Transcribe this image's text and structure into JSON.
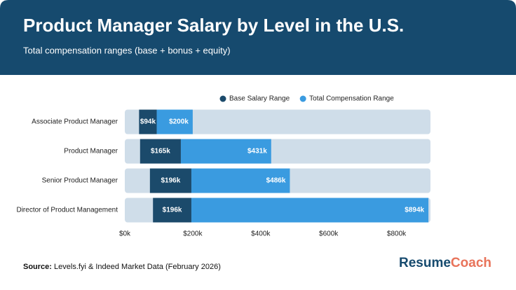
{
  "chart_data": {
    "type": "range-bar",
    "title": "Product Manager Salary by Level in the U.S.",
    "subtitle": "Total compensation ranges (base + bonus + equity)",
    "categories": [
      "Associate Product Manager",
      "Product Manager",
      "Senior Product Manager",
      "Director of Product Management"
    ],
    "series": [
      {
        "name": "Base Salary Range",
        "color": "#1b4a6b",
        "low": [
          42,
          45,
          74,
          83
        ],
        "values": [
          94,
          165,
          196,
          196
        ],
        "value_labels": [
          "$94k",
          "$165k",
          "$196k",
          "$196k"
        ]
      },
      {
        "name": "Total Compensation Range",
        "color": "#3a9be0",
        "values": [
          200,
          431,
          486,
          894
        ],
        "value_labels": [
          "$200k",
          "$431k",
          "$486k",
          "$894k"
        ]
      }
    ],
    "track_color": "#cfdde9",
    "xlim": [
      0,
      900
    ],
    "xticks": [
      {
        "value": 0,
        "label": "$0k"
      },
      {
        "value": 200,
        "label": "$200k"
      },
      {
        "value": 400,
        "label": "$400k"
      },
      {
        "value": 600,
        "label": "$600k"
      },
      {
        "value": 800,
        "label": "$800k"
      }
    ],
    "legend": "top"
  },
  "source": {
    "label": "Source:",
    "text": "Levels.fyi & Indeed Market Data (February 2026)"
  },
  "brand": {
    "first": "Resume",
    "second": "Coach"
  }
}
